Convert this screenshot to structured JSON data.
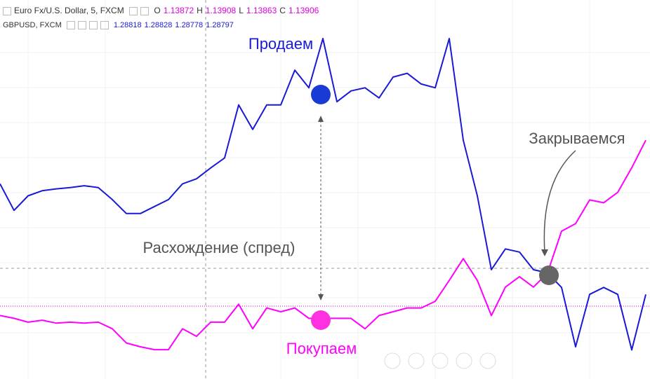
{
  "chart_data": {
    "type": "line",
    "legend": {
      "main": {
        "title": "Euro Fx/U.S. Dollar, 5, FXCM",
        "labels": [
          "O",
          "H",
          "L",
          "C"
        ],
        "values": [
          "1.13872",
          "1.13908",
          "1.13863",
          "1.13906"
        ]
      },
      "overlay": {
        "title": "GBPUSD, FXCM",
        "values": [
          "1.28818",
          "1.28828",
          "1.28778",
          "1.28797"
        ]
      }
    },
    "annotations": {
      "sell": "Продаем",
      "buy": "Покупаем",
      "spread": "Расхождение (спред)",
      "close": "Закрываемся"
    },
    "ylim": [
      1.2866,
      1.2926
    ],
    "y2lim": [
      1.1366,
      1.1406
    ],
    "series": [
      {
        "name": "GBPUSD",
        "color": "#1a1ad6",
        "values": [
          1.28969,
          1.28927,
          1.2895,
          1.28958,
          1.28961,
          1.28963,
          1.28966,
          1.28963,
          1.28944,
          1.28922,
          1.28922,
          1.28933,
          1.28944,
          1.28969,
          1.28977,
          1.28994,
          1.2901,
          1.29094,
          1.29055,
          1.29094,
          1.29094,
          1.29149,
          1.29121,
          1.29199,
          1.29099,
          1.29116,
          1.29121,
          1.29105,
          1.29138,
          1.29144,
          1.29127,
          1.29121,
          1.29199,
          1.29038,
          1.2895,
          1.28833,
          1.28866,
          1.28861,
          1.28833,
          1.28828,
          1.28805,
          1.28711,
          1.28794,
          1.28805,
          1.28794,
          1.28706,
          1.28794
        ]
      },
      {
        "name": "Euro Fx/U.S. Dollar",
        "color": "#ff00ff",
        "axis": "y2",
        "values": [
          1.13727,
          1.13724,
          1.1372,
          1.13722,
          1.13719,
          1.1372,
          1.13719,
          1.1372,
          1.13713,
          1.13698,
          1.13694,
          1.13691,
          1.13691,
          1.13713,
          1.13705,
          1.1372,
          1.1372,
          1.13739,
          1.13713,
          1.13735,
          1.13731,
          1.13735,
          1.13724,
          1.13724,
          1.13724,
          1.13724,
          1.13713,
          1.13727,
          1.13731,
          1.13735,
          1.13735,
          1.13742,
          1.13764,
          1.13787,
          1.13764,
          1.13727,
          1.13757,
          1.13768,
          1.13757,
          1.13772,
          1.13816,
          1.13824,
          1.13849,
          1.13846,
          1.13857,
          1.13883,
          1.13912
        ]
      }
    ]
  }
}
